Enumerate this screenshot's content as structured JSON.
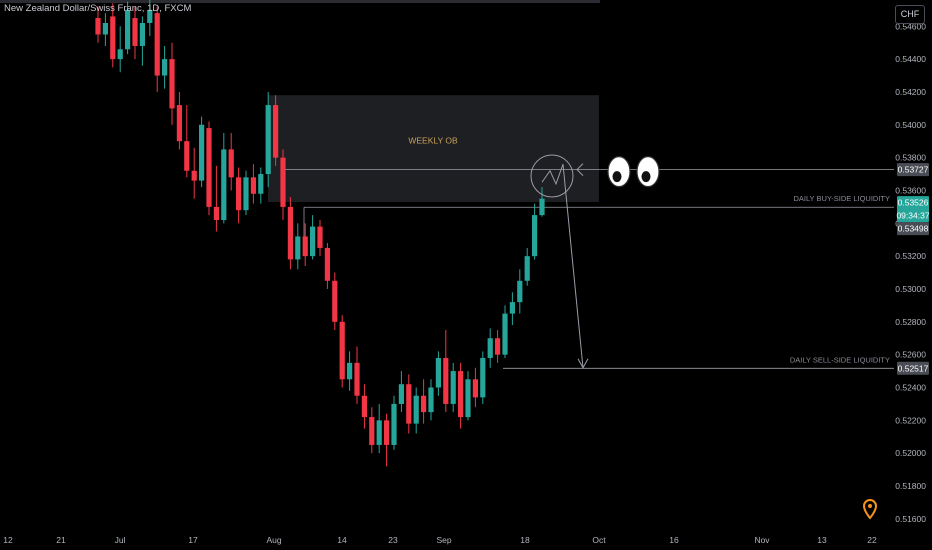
{
  "header": {
    "title": "New Zealand Dollar/Swiss Franc, 1D, FXCM",
    "currency": "CHF"
  },
  "colors": {
    "background": "#000000",
    "up_candle": "#26a69a",
    "down_candle": "#f23645",
    "order_block": "#1e1f22",
    "annotation": "#9a9da6",
    "ob_text": "#c8a15c",
    "price_tag_current": "#26a69a",
    "price_tag_level": "#4a4d55",
    "map_pin": "#f7931a"
  },
  "chart_data": {
    "type": "candlestick",
    "symbol": "NZDCHF",
    "timeframe": "1D",
    "ylim": [
      0.5152,
      0.5476
    ],
    "y_ticks": [
      "0.51600",
      "0.51800",
      "0.52000",
      "0.52200",
      "0.52400",
      "0.52600",
      "0.52800",
      "0.53000",
      "0.53200",
      "0.53400",
      "0.53600",
      "0.53800",
      "0.54000",
      "0.54200",
      "0.54400",
      "0.54600"
    ],
    "x_ticks": [
      "12",
      "21",
      "Jul",
      "17",
      "Aug",
      "14",
      "23",
      "Sep",
      "18",
      "Oct",
      "16",
      "Nov",
      "13",
      "22"
    ],
    "candles": [
      {
        "o": 0.5465,
        "h": 0.5472,
        "l": 0.545,
        "c": 0.5455
      },
      {
        "o": 0.5455,
        "h": 0.5468,
        "l": 0.5448,
        "c": 0.5462
      },
      {
        "o": 0.5466,
        "h": 0.5474,
        "l": 0.5435,
        "c": 0.544
      },
      {
        "o": 0.544,
        "h": 0.546,
        "l": 0.5432,
        "c": 0.5446
      },
      {
        "o": 0.5446,
        "h": 0.5475,
        "l": 0.5443,
        "c": 0.547
      },
      {
        "o": 0.5465,
        "h": 0.5472,
        "l": 0.544,
        "c": 0.5448
      },
      {
        "o": 0.5448,
        "h": 0.5466,
        "l": 0.5436,
        "c": 0.5462
      },
      {
        "o": 0.5462,
        "h": 0.5476,
        "l": 0.5454,
        "c": 0.547
      },
      {
        "o": 0.5468,
        "h": 0.5472,
        "l": 0.542,
        "c": 0.543
      },
      {
        "o": 0.543,
        "h": 0.5448,
        "l": 0.5422,
        "c": 0.544
      },
      {
        "o": 0.544,
        "h": 0.545,
        "l": 0.54,
        "c": 0.541
      },
      {
        "o": 0.5412,
        "h": 0.542,
        "l": 0.5385,
        "c": 0.539
      },
      {
        "o": 0.539,
        "h": 0.5412,
        "l": 0.5368,
        "c": 0.5372
      },
      {
        "o": 0.5372,
        "h": 0.5386,
        "l": 0.5355,
        "c": 0.5366
      },
      {
        "o": 0.5366,
        "h": 0.5405,
        "l": 0.5362,
        "c": 0.54
      },
      {
        "o": 0.5398,
        "h": 0.5402,
        "l": 0.5345,
        "c": 0.535
      },
      {
        "o": 0.535,
        "h": 0.5375,
        "l": 0.5335,
        "c": 0.5342
      },
      {
        "o": 0.5342,
        "h": 0.5395,
        "l": 0.534,
        "c": 0.5385
      },
      {
        "o": 0.5385,
        "h": 0.5395,
        "l": 0.536,
        "c": 0.5368
      },
      {
        "o": 0.5368,
        "h": 0.5374,
        "l": 0.534,
        "c": 0.5348
      },
      {
        "o": 0.5348,
        "h": 0.5372,
        "l": 0.5345,
        "c": 0.5368
      },
      {
        "o": 0.5368,
        "h": 0.5376,
        "l": 0.5352,
        "c": 0.5358
      },
      {
        "o": 0.5358,
        "h": 0.5374,
        "l": 0.5352,
        "c": 0.537
      },
      {
        "o": 0.537,
        "h": 0.542,
        "l": 0.5362,
        "c": 0.5412
      },
      {
        "o": 0.5412,
        "h": 0.5418,
        "l": 0.5375,
        "c": 0.538
      },
      {
        "o": 0.538,
        "h": 0.5385,
        "l": 0.5342,
        "c": 0.535
      },
      {
        "o": 0.535,
        "h": 0.5356,
        "l": 0.5312,
        "c": 0.5318
      },
      {
        "o": 0.5318,
        "h": 0.534,
        "l": 0.5312,
        "c": 0.5332
      },
      {
        "o": 0.5332,
        "h": 0.534,
        "l": 0.5314,
        "c": 0.532
      },
      {
        "o": 0.532,
        "h": 0.5345,
        "l": 0.5318,
        "c": 0.5338
      },
      {
        "o": 0.5338,
        "h": 0.5342,
        "l": 0.532,
        "c": 0.5325
      },
      {
        "o": 0.5325,
        "h": 0.5328,
        "l": 0.53,
        "c": 0.5305
      },
      {
        "o": 0.5305,
        "h": 0.531,
        "l": 0.5275,
        "c": 0.528
      },
      {
        "o": 0.528,
        "h": 0.5284,
        "l": 0.524,
        "c": 0.5245
      },
      {
        "o": 0.5245,
        "h": 0.5262,
        "l": 0.5238,
        "c": 0.5255
      },
      {
        "o": 0.5255,
        "h": 0.5265,
        "l": 0.523,
        "c": 0.5235
      },
      {
        "o": 0.5235,
        "h": 0.5242,
        "l": 0.5215,
        "c": 0.5222
      },
      {
        "o": 0.5222,
        "h": 0.5228,
        "l": 0.52,
        "c": 0.5205
      },
      {
        "o": 0.5205,
        "h": 0.523,
        "l": 0.52,
        "c": 0.522
      },
      {
        "o": 0.522,
        "h": 0.5224,
        "l": 0.5192,
        "c": 0.5205
      },
      {
        "o": 0.5205,
        "h": 0.5235,
        "l": 0.5202,
        "c": 0.523
      },
      {
        "o": 0.523,
        "h": 0.525,
        "l": 0.5225,
        "c": 0.5242
      },
      {
        "o": 0.5242,
        "h": 0.5248,
        "l": 0.5212,
        "c": 0.5218
      },
      {
        "o": 0.5218,
        "h": 0.524,
        "l": 0.5212,
        "c": 0.5235
      },
      {
        "o": 0.5235,
        "h": 0.5245,
        "l": 0.5218,
        "c": 0.5225
      },
      {
        "o": 0.5225,
        "h": 0.5245,
        "l": 0.522,
        "c": 0.524
      },
      {
        "o": 0.524,
        "h": 0.5262,
        "l": 0.5235,
        "c": 0.5258
      },
      {
        "o": 0.5258,
        "h": 0.5275,
        "l": 0.5225,
        "c": 0.523
      },
      {
        "o": 0.523,
        "h": 0.5255,
        "l": 0.5225,
        "c": 0.525
      },
      {
        "o": 0.525,
        "h": 0.5255,
        "l": 0.5215,
        "c": 0.5222
      },
      {
        "o": 0.5222,
        "h": 0.525,
        "l": 0.522,
        "c": 0.5245
      },
      {
        "o": 0.5245,
        "h": 0.5252,
        "l": 0.5228,
        "c": 0.5234
      },
      {
        "o": 0.5234,
        "h": 0.5262,
        "l": 0.523,
        "c": 0.5258
      },
      {
        "o": 0.5258,
        "h": 0.5276,
        "l": 0.5252,
        "c": 0.527
      },
      {
        "o": 0.527,
        "h": 0.5275,
        "l": 0.5255,
        "c": 0.526
      },
      {
        "o": 0.526,
        "h": 0.529,
        "l": 0.5258,
        "c": 0.5285
      },
      {
        "o": 0.5285,
        "h": 0.5298,
        "l": 0.5278,
        "c": 0.5292
      },
      {
        "o": 0.5292,
        "h": 0.5312,
        "l": 0.5285,
        "c": 0.5305
      },
      {
        "o": 0.5305,
        "h": 0.5325,
        "l": 0.5302,
        "c": 0.532
      },
      {
        "o": 0.532,
        "h": 0.5352,
        "l": 0.5318,
        "c": 0.5345
      },
      {
        "o": 0.5345,
        "h": 0.5362,
        "l": 0.5344,
        "c": 0.5355
      }
    ],
    "weekly_ob_zone": {
      "top": 0.5418,
      "bottom": 0.5353
    },
    "levels": [
      {
        "price": 0.53727,
        "tag": "0.53727"
      },
      {
        "price": 0.53498,
        "tag": "0.53498",
        "label": "DAILY BUY-SIDE LIQUIDITY"
      },
      {
        "price": 0.52517,
        "tag": "0.52517",
        "label": "DAILY SELL-SIDE LIQUIDITY"
      }
    ],
    "current_price": {
      "price": 0.53526,
      "tag": "0.53526",
      "countdown": "09:34:37"
    },
    "annotations": {
      "zone_label": "WEEKLY OB",
      "projected_path": [
        [
          0.5365,
          0
        ],
        [
          0.5372,
          1
        ],
        [
          0.5364,
          2
        ],
        [
          0.5376,
          3
        ],
        [
          0.5252,
          4
        ]
      ],
      "circle_at": {
        "price": 0.537,
        "candle": 59
      }
    }
  }
}
